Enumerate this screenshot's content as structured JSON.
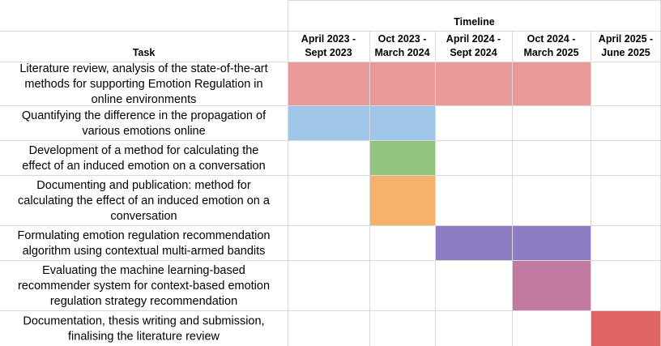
{
  "chart_data": {
    "type": "table",
    "title": "Timeline",
    "task_header": "Task",
    "periods": [
      [
        "April 2023 -",
        "Sept 2023"
      ],
      [
        "Oct 2023 -",
        "March 2024"
      ],
      [
        "April 2024 -",
        "Sept 2024"
      ],
      [
        "Oct 2024 -",
        "March 2025"
      ],
      [
        "April 2025 -",
        "June 2025"
      ]
    ],
    "tasks": [
      {
        "lines": [
          "Literature review, analysis of the state-of-the-art",
          "methods for supporting Emotion Regulation in",
          "online environments"
        ],
        "start_period": 0,
        "end_period": 3,
        "color": "#ea9999"
      },
      {
        "lines": [
          "Quantifying the difference in the propagation of",
          "various emotions online"
        ],
        "start_period": 0,
        "end_period": 1,
        "color": "#9fc5e8"
      },
      {
        "lines": [
          "Development of a method for calculating the",
          "effect of an induced emotion on a conversation"
        ],
        "start_period": 1,
        "end_period": 1,
        "color": "#93c47d"
      },
      {
        "lines": [
          "Documenting and publication: method for",
          "calculating the effect of an induced emotion on a",
          "conversation"
        ],
        "start_period": 1,
        "end_period": 1,
        "color": "#f6b26b"
      },
      {
        "lines": [
          "Formulating emotion regulation recommendation",
          "algorithm using contextual multi-armed bandits"
        ],
        "start_period": 2,
        "end_period": 3,
        "color": "#8e7cc3"
      },
      {
        "lines": [
          "Evaluating the machine learning-based",
          "recommender system for context-based emotion",
          "regulation strategy recommendation"
        ],
        "start_period": 3,
        "end_period": 3,
        "color": "#c27ba0"
      },
      {
        "lines": [
          "Documentation, thesis writing and submission,",
          "finalising the literature review"
        ],
        "start_period": 4,
        "end_period": 4,
        "color": "#e06666"
      }
    ],
    "grid_color": "#d9d9d9"
  }
}
